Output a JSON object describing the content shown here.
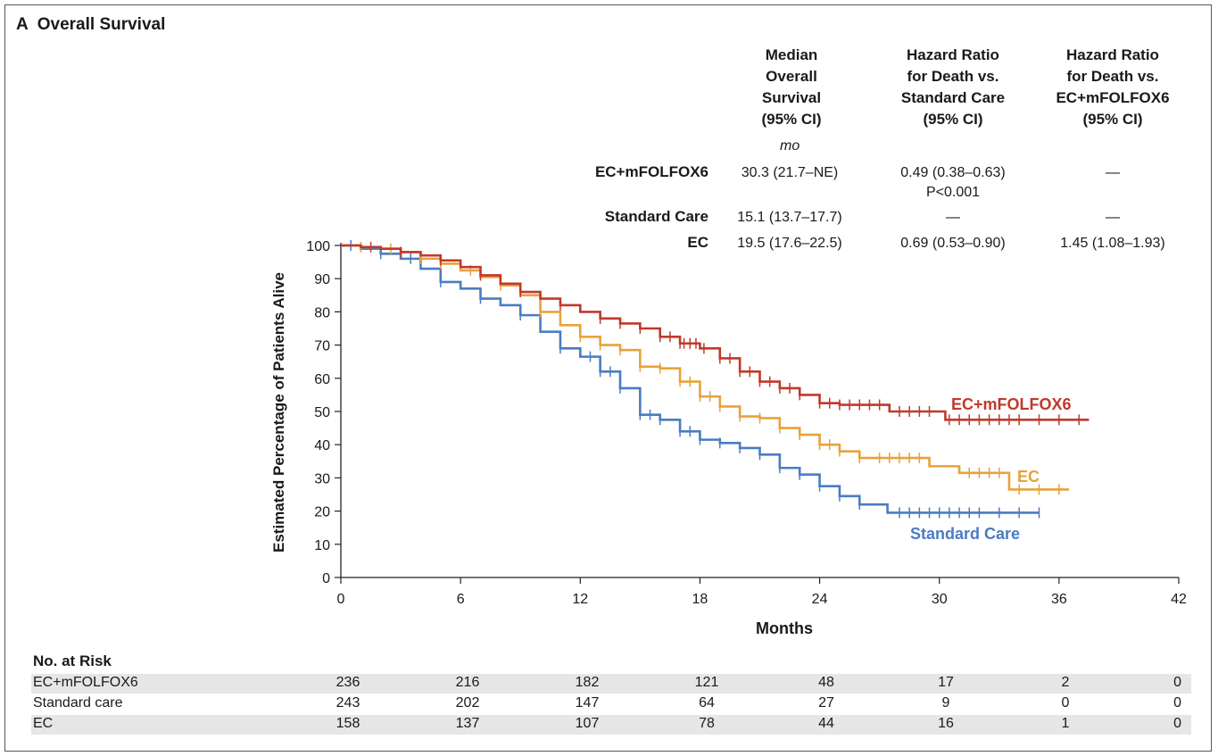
{
  "panel_letter": "A",
  "panel_title": "Overall Survival",
  "stats_table": {
    "headers": [
      "Median\nOverall\nSurvival\n(95% CI)",
      "Hazard Ratio\nfor Death vs.\nStandard Care\n(95% CI)",
      "Hazard Ratio\nfor Death vs.\nEC+mFOLFOX6\n(95% CI)"
    ],
    "unit": "mo",
    "rows": [
      {
        "label": "EC+mFOLFOX6",
        "median": "30.3 (21.7–NE)",
        "hr_sc": "0.49 (0.38–0.63)\nP<0.001",
        "hr_ec": "—"
      },
      {
        "label": "Standard Care",
        "median": "15.1 (13.7–17.7)",
        "hr_sc": "—",
        "hr_ec": "—"
      },
      {
        "label": "EC",
        "median": "19.5 (17.6–22.5)",
        "hr_sc": "0.69 (0.53–0.90)",
        "hr_ec": "1.45 (1.08–1.93)"
      }
    ]
  },
  "chart_data": {
    "type": "line",
    "xlabel": "Months",
    "ylabel": "Estimated Percentage of Patients Alive",
    "xlim": [
      0,
      42
    ],
    "ylim": [
      0,
      100
    ],
    "x_ticks": [
      0,
      6,
      12,
      18,
      24,
      30,
      36,
      42
    ],
    "y_ticks": [
      0,
      10,
      20,
      30,
      40,
      50,
      60,
      70,
      80,
      90,
      100
    ],
    "series": [
      {
        "name": "EC+mFOLFOX6",
        "color": "#c0392b",
        "points": [
          [
            0,
            100
          ],
          [
            1,
            99.5
          ],
          [
            2,
            99
          ],
          [
            3,
            98
          ],
          [
            4,
            97
          ],
          [
            5,
            95.5
          ],
          [
            6,
            93.5
          ],
          [
            7,
            91
          ],
          [
            8,
            88.5
          ],
          [
            9,
            86
          ],
          [
            10,
            84
          ],
          [
            11,
            82
          ],
          [
            12,
            80
          ],
          [
            13,
            78
          ],
          [
            14,
            76.5
          ],
          [
            15,
            75
          ],
          [
            16,
            72.5
          ],
          [
            17,
            70.5
          ],
          [
            18,
            69
          ],
          [
            19,
            66
          ],
          [
            20,
            62
          ],
          [
            21,
            59
          ],
          [
            22,
            57
          ],
          [
            23,
            55
          ],
          [
            24,
            52.5
          ],
          [
            25,
            52
          ],
          [
            26,
            52
          ],
          [
            27,
            52
          ],
          [
            27.5,
            50
          ],
          [
            29,
            50
          ],
          [
            30,
            50
          ],
          [
            30.3,
            47.5
          ],
          [
            33,
            47.5
          ],
          [
            36,
            47.5
          ],
          [
            37.5,
            47.5
          ]
        ],
        "censor_x": [
          1.5,
          3,
          5,
          7,
          9,
          11,
          13,
          14,
          15,
          16,
          16.5,
          17,
          17.2,
          17.5,
          17.8,
          18.2,
          19,
          19.5,
          20,
          20.5,
          21,
          21.5,
          22,
          22.5,
          23,
          24,
          24.5,
          25,
          25.5,
          26,
          26.5,
          27,
          28,
          28.5,
          29,
          29.5,
          30.5,
          31,
          31.5,
          32,
          32.5,
          33,
          33.5,
          34,
          35,
          36,
          37
        ]
      },
      {
        "name": "EC",
        "color": "#e8a23a",
        "points": [
          [
            0,
            100
          ],
          [
            1,
            99.5
          ],
          [
            2,
            99
          ],
          [
            3,
            98
          ],
          [
            4,
            96
          ],
          [
            5,
            94.5
          ],
          [
            6,
            92.5
          ],
          [
            7,
            90.5
          ],
          [
            8,
            88
          ],
          [
            9,
            85
          ],
          [
            10,
            80
          ],
          [
            11,
            76
          ],
          [
            12,
            72.5
          ],
          [
            13,
            70
          ],
          [
            14,
            68.5
          ],
          [
            15,
            63.5
          ],
          [
            16,
            63
          ],
          [
            17,
            59
          ],
          [
            18,
            54.5
          ],
          [
            19,
            51.5
          ],
          [
            20,
            48.5
          ],
          [
            21,
            48
          ],
          [
            22,
            45
          ],
          [
            23,
            43
          ],
          [
            24,
            40
          ],
          [
            25,
            38
          ],
          [
            26,
            36
          ],
          [
            27,
            36
          ],
          [
            29,
            36
          ],
          [
            29.5,
            33.5
          ],
          [
            30,
            33.5
          ],
          [
            31,
            31.5
          ],
          [
            33,
            31.5
          ],
          [
            33.5,
            26.5
          ],
          [
            36.5,
            26.5
          ]
        ],
        "censor_x": [
          1,
          2.5,
          4,
          5,
          6.5,
          8,
          10,
          12,
          13,
          14,
          15,
          16,
          17,
          17.5,
          18,
          18.5,
          19,
          20,
          21,
          22,
          23,
          24,
          24.5,
          25,
          26,
          27,
          27.5,
          28,
          28.5,
          29,
          31.5,
          32,
          32.5,
          33,
          34,
          35,
          36
        ]
      },
      {
        "name": "Standard Care",
        "color": "#4a7cc4",
        "points": [
          [
            0,
            100
          ],
          [
            1,
            99
          ],
          [
            2,
            97.5
          ],
          [
            3,
            96
          ],
          [
            4,
            93
          ],
          [
            5,
            89
          ],
          [
            6,
            87
          ],
          [
            7,
            84
          ],
          [
            8,
            82
          ],
          [
            9,
            79
          ],
          [
            10,
            74
          ],
          [
            11,
            69
          ],
          [
            12,
            66.5
          ],
          [
            13,
            62
          ],
          [
            14,
            57
          ],
          [
            15,
            49
          ],
          [
            16,
            47.5
          ],
          [
            17,
            44
          ],
          [
            18,
            41.5
          ],
          [
            19,
            40.5
          ],
          [
            20,
            39
          ],
          [
            21,
            37
          ],
          [
            22,
            33
          ],
          [
            23,
            31
          ],
          [
            24,
            27.5
          ],
          [
            25,
            24.5
          ],
          [
            26,
            22
          ],
          [
            27,
            22
          ],
          [
            27.4,
            19.5
          ],
          [
            30,
            19.5
          ],
          [
            33,
            19.5
          ],
          [
            35,
            19.5
          ]
        ],
        "censor_x": [
          0.5,
          2,
          3.5,
          5,
          7,
          9,
          11,
          12.5,
          13,
          13.5,
          14,
          15,
          15.5,
          16,
          17,
          17.5,
          18,
          19,
          20,
          21,
          22,
          23,
          24,
          25,
          26,
          28,
          28.5,
          29,
          29.5,
          30,
          30.5,
          31,
          31.5,
          32,
          33,
          34,
          35
        ]
      }
    ],
    "annotations": [
      {
        "text": "EC+mFOLFOX6",
        "color": "#c0392b"
      },
      {
        "text": "EC",
        "color": "#e8a23a"
      },
      {
        "text": "Standard Care",
        "color": "#4a7cc4"
      }
    ]
  },
  "risk_table": {
    "title": "No. at Risk",
    "rows": [
      {
        "label": "EC+mFOLFOX6",
        "values": [
          "236",
          "216",
          "182",
          "121",
          "48",
          "17",
          "2",
          "0"
        ]
      },
      {
        "label": "Standard care",
        "values": [
          "243",
          "202",
          "147",
          "64",
          "27",
          "9",
          "0",
          "0"
        ]
      },
      {
        "label": "EC",
        "values": [
          "158",
          "137",
          "107",
          "78",
          "44",
          "16",
          "1",
          "0"
        ]
      }
    ]
  }
}
